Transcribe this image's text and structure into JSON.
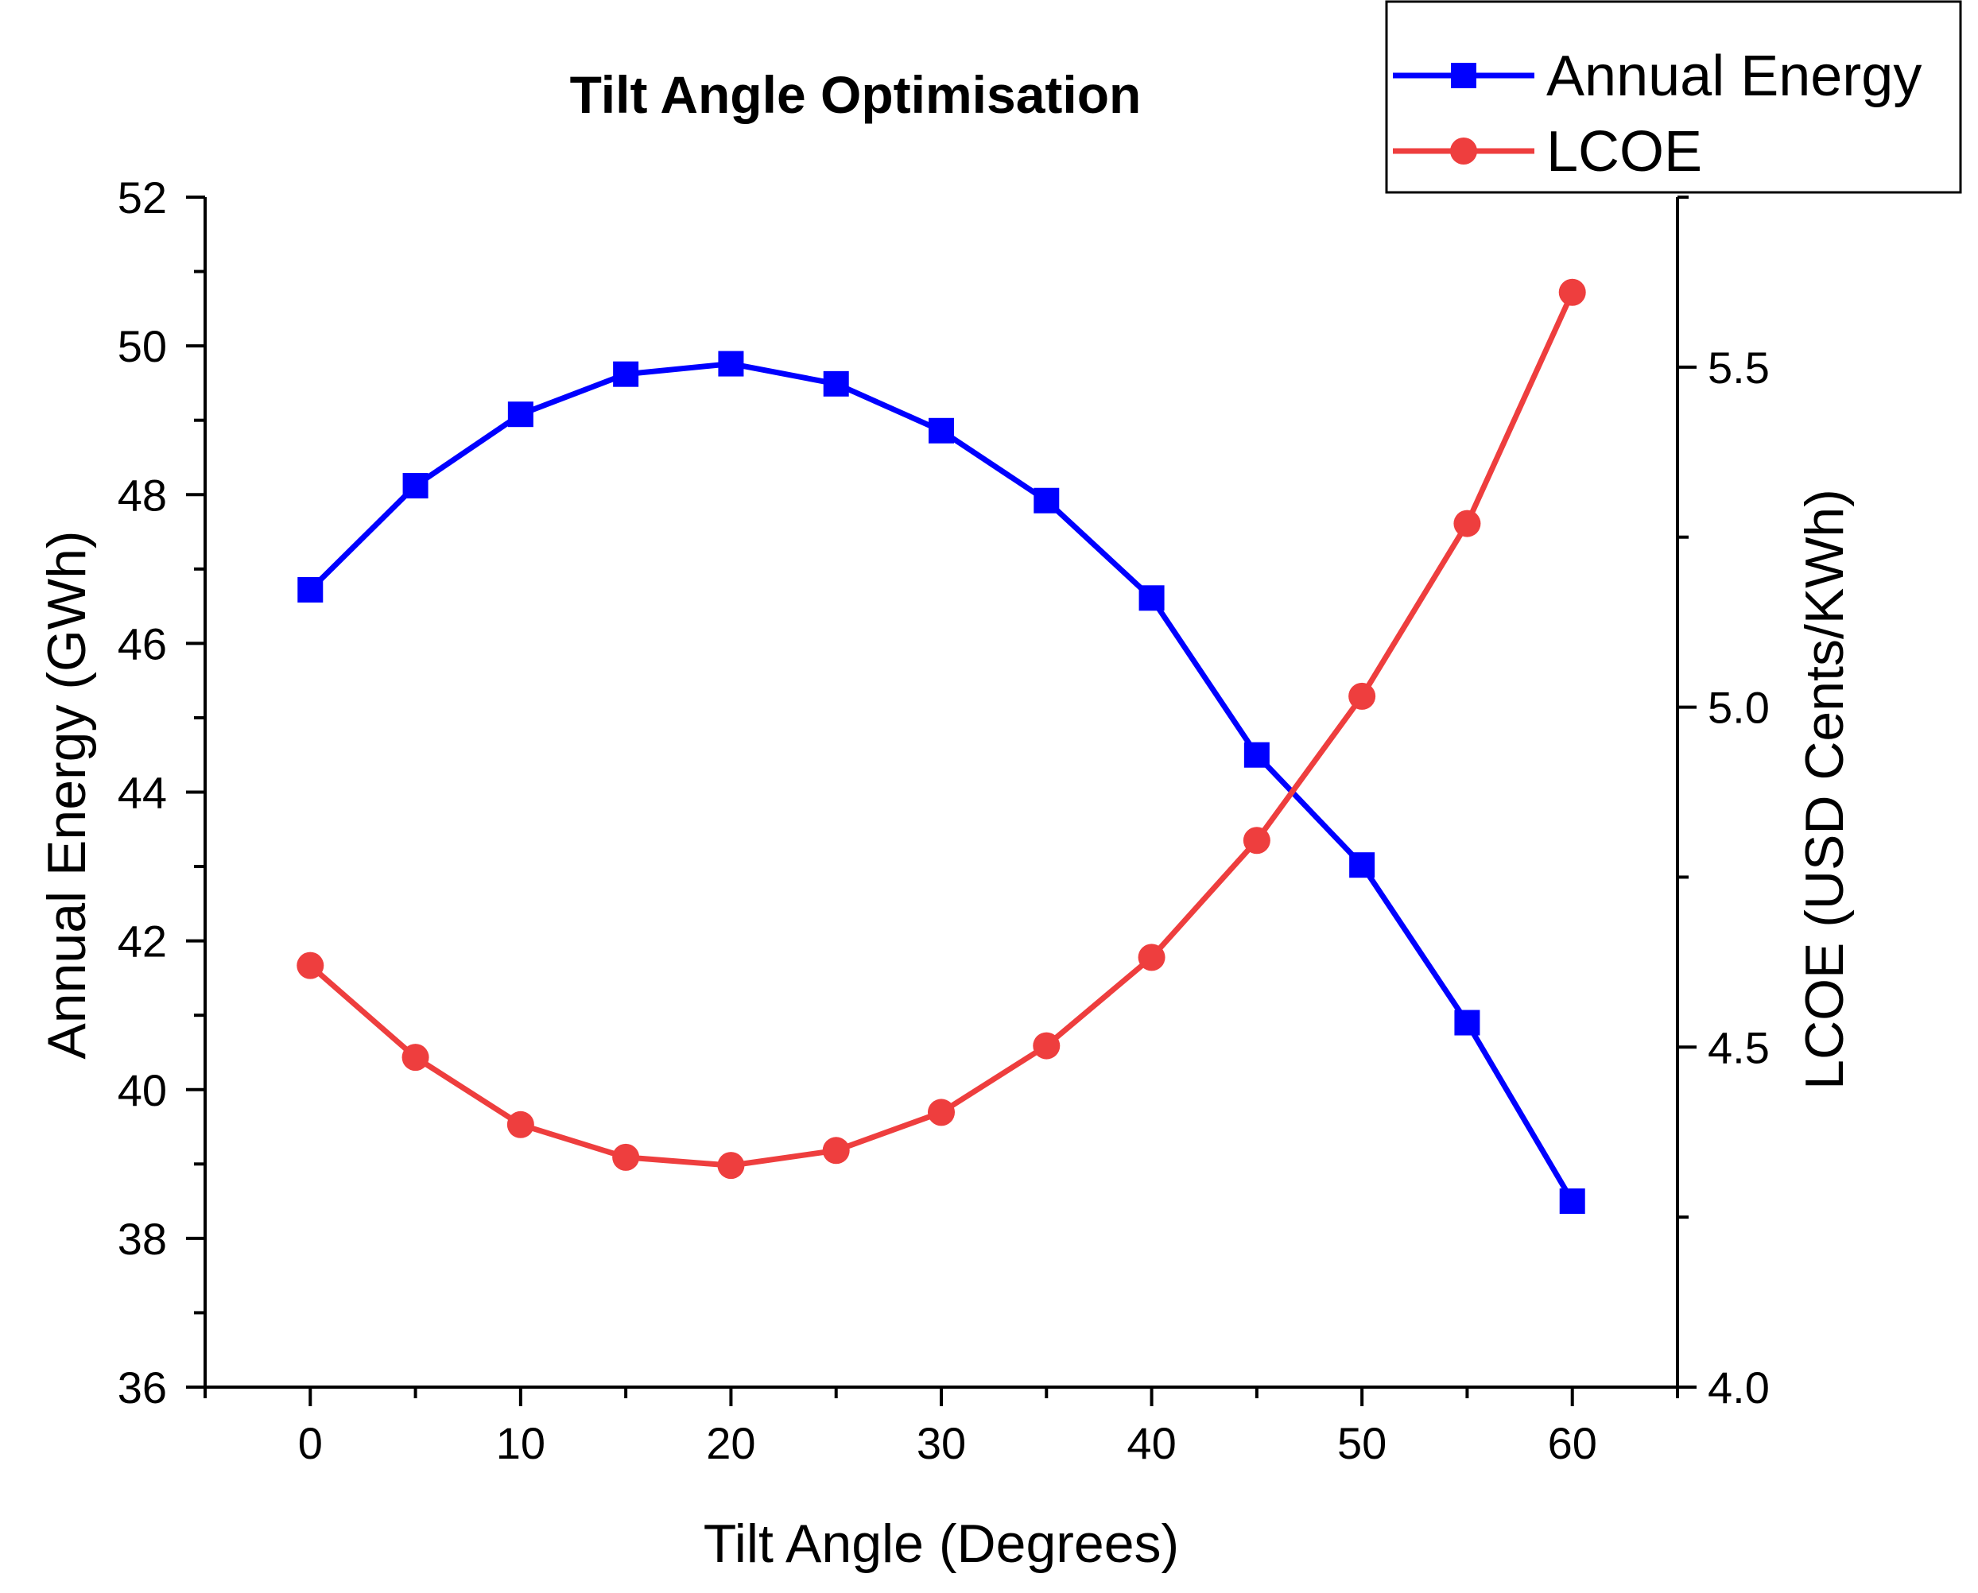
{
  "colors": {
    "energy": "#0000ff",
    "lcoe": "#ee3e3e",
    "axis": "#000000"
  },
  "chart_data": {
    "type": "line",
    "title": "Tilt Angle Optimisation",
    "xlabel": "Tilt Angle (Degrees)",
    "ylabel_left": "Annual Energy (GWh)",
    "ylabel_right": "LCOE (USD Cents/KWh)",
    "xlim": [
      -5,
      65
    ],
    "ylim_left": [
      36,
      52
    ],
    "ylim_right": [
      4.0,
      5.75
    ],
    "x_ticks": [
      0,
      10,
      20,
      30,
      40,
      50,
      60
    ],
    "x_tick_labels": [
      "0",
      "10",
      "20",
      "30",
      "40",
      "50",
      "60"
    ],
    "y_left_ticks": [
      36,
      38,
      40,
      42,
      44,
      46,
      48,
      50,
      52
    ],
    "y_left_tick_labels": [
      "36",
      "38",
      "40",
      "42",
      "44",
      "46",
      "48",
      "50",
      "52"
    ],
    "y_right_ticks": [
      4.0,
      4.5,
      5.0,
      5.5
    ],
    "y_right_tick_labels": [
      "4.0",
      "4.5",
      "5.0",
      "5.5"
    ],
    "x": [
      0,
      5,
      10,
      15,
      20,
      25,
      30,
      35,
      40,
      45,
      50,
      55,
      60
    ],
    "series": [
      {
        "name": "Annual Energy",
        "axis": "left",
        "marker": "square",
        "values": [
          46.72,
          48.12,
          49.08,
          49.62,
          49.76,
          49.49,
          48.86,
          47.92,
          46.61,
          44.5,
          43.02,
          40.9,
          38.5
        ]
      },
      {
        "name": "LCOE",
        "axis": "right",
        "marker": "circle",
        "values": [
          4.62,
          4.485,
          4.386,
          4.338,
          4.326,
          4.348,
          4.404,
          4.502,
          4.632,
          4.804,
          5.016,
          5.27,
          5.61
        ]
      }
    ],
    "legend": {
      "position": "top-right",
      "entries": [
        "Annual Energy",
        "LCOE"
      ]
    }
  }
}
